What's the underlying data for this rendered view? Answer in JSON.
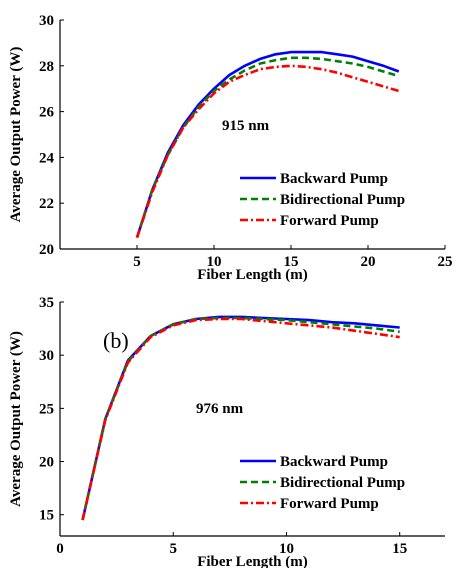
{
  "chart_data": [
    {
      "type": "line",
      "title": "",
      "xlabel": "Fiber Length (m)",
      "ylabel": "Average Output Power (W)",
      "xlim": [
        0,
        25
      ],
      "ylim": [
        20,
        30
      ],
      "xticks": [
        5,
        10,
        15,
        20,
        25
      ],
      "yticks": [
        20,
        22,
        24,
        26,
        28,
        30
      ],
      "annotation": "915 nm",
      "panel_label": "",
      "grid": false,
      "legend_position": "bottom-right",
      "series": [
        {
          "name": "Backward Pump",
          "color": "#0000ff",
          "style": "solid",
          "x": [
            5,
            6,
            7,
            8,
            9,
            10,
            11,
            12,
            13,
            14,
            15,
            16,
            17,
            18,
            19,
            20,
            21,
            22
          ],
          "y": [
            20.5,
            22.6,
            24.2,
            25.4,
            26.3,
            27.0,
            27.6,
            28.0,
            28.3,
            28.5,
            28.6,
            28.6,
            28.6,
            28.5,
            28.4,
            28.2,
            28.0,
            27.75
          ]
        },
        {
          "name": "Bidirectional Pump",
          "color": "#008000",
          "style": "dashed",
          "x": [
            5,
            6,
            7,
            8,
            9,
            10,
            11,
            12,
            13,
            14,
            15,
            16,
            17,
            18,
            19,
            20,
            21,
            22
          ],
          "y": [
            20.5,
            22.6,
            24.1,
            25.3,
            26.2,
            26.9,
            27.4,
            27.8,
            28.1,
            28.25,
            28.35,
            28.35,
            28.3,
            28.2,
            28.1,
            27.95,
            27.75,
            27.55
          ]
        },
        {
          "name": "Forward Pump",
          "color": "#ff0000",
          "style": "dashdot",
          "x": [
            5,
            6,
            7,
            8,
            9,
            10,
            11,
            12,
            13,
            14,
            15,
            16,
            17,
            18,
            19,
            20,
            21,
            22
          ],
          "y": [
            20.5,
            22.5,
            24.1,
            25.3,
            26.1,
            26.8,
            27.3,
            27.6,
            27.85,
            27.95,
            28.0,
            27.95,
            27.85,
            27.7,
            27.5,
            27.3,
            27.1,
            26.9
          ]
        }
      ]
    },
    {
      "type": "line",
      "title": "",
      "xlabel": "Fiber Length (m)",
      "ylabel": "Average Output Power (W)",
      "xlim": [
        0,
        17
      ],
      "ylim": [
        13,
        35
      ],
      "xticks": [
        0,
        5,
        10,
        15
      ],
      "yticks": [
        15,
        20,
        25,
        30,
        35
      ],
      "annotation": "976 nm",
      "panel_label": "(b)",
      "grid": false,
      "legend_position": "bottom-right",
      "series": [
        {
          "name": "Backward Pump",
          "color": "#0000ff",
          "style": "solid",
          "x": [
            1,
            2,
            3,
            4,
            5,
            6,
            7,
            8,
            9,
            10,
            11,
            12,
            13,
            14,
            15
          ],
          "y": [
            14.5,
            24.0,
            29.5,
            31.8,
            32.9,
            33.4,
            33.6,
            33.6,
            33.5,
            33.4,
            33.3,
            33.1,
            33.0,
            32.8,
            32.6
          ]
        },
        {
          "name": "Bidirectional Pump",
          "color": "#008000",
          "style": "dashed",
          "x": [
            1,
            2,
            3,
            4,
            5,
            6,
            7,
            8,
            9,
            10,
            11,
            12,
            13,
            14,
            15
          ],
          "y": [
            14.5,
            24.0,
            29.4,
            31.8,
            32.9,
            33.4,
            33.5,
            33.5,
            33.4,
            33.3,
            33.1,
            32.9,
            32.7,
            32.5,
            32.2
          ]
        },
        {
          "name": "Forward Pump",
          "color": "#ff0000",
          "style": "dashdot",
          "x": [
            1,
            2,
            3,
            4,
            5,
            6,
            7,
            8,
            9,
            10,
            11,
            12,
            13,
            14,
            15
          ],
          "y": [
            14.5,
            23.9,
            29.3,
            31.7,
            32.8,
            33.3,
            33.4,
            33.4,
            33.2,
            33.0,
            32.8,
            32.6,
            32.3,
            32.0,
            31.7
          ]
        }
      ]
    }
  ]
}
